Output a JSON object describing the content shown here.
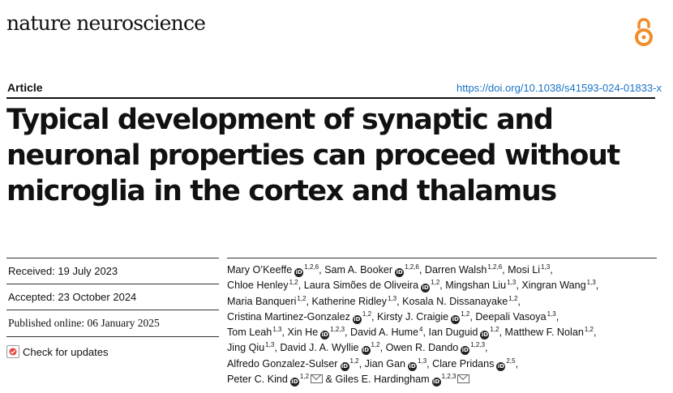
{
  "header": {
    "journal_name": "nature neuroscience",
    "open_access_icon": "open-access-icon",
    "article_type": "Article",
    "doi": "https://doi.org/10.1038/s41593-024-01833-x"
  },
  "title_lines": [
    "Typical development of synaptic and",
    "neuronal properties can proceed without",
    "microglia in the cortex and thalamus"
  ],
  "meta": {
    "received": "Received: 19 July 2023",
    "accepted": "Accepted: 23 October 2024",
    "published": "Published online: 06 January 2025",
    "check_updates": "Check for updates"
  },
  "authors": [
    {
      "name": "Mary O’Keeffe",
      "orcid": true,
      "sup": "1,2,6"
    },
    {
      "name": "Sam A. Booker",
      "orcid": true,
      "sup": "1,2,6"
    },
    {
      "name": "Darren Walsh",
      "orcid": false,
      "sup": "1,2,6"
    },
    {
      "name": "Mosi Li",
      "orcid": false,
      "sup": "1,3"
    },
    {
      "name": "Chloe Henley",
      "orcid": false,
      "sup": "1,2"
    },
    {
      "name": "Laura Simões de Oliveira",
      "orcid": true,
      "sup": "1,2"
    },
    {
      "name": "Mingshan Liu",
      "orcid": false,
      "sup": "1,3"
    },
    {
      "name": "Xingran Wang",
      "orcid": false,
      "sup": "1,3"
    },
    {
      "name": "Maria Banqueri",
      "orcid": false,
      "sup": "1,2"
    },
    {
      "name": "Katherine Ridley",
      "orcid": false,
      "sup": "1,3"
    },
    {
      "name": "Kosala N. Dissanayake",
      "orcid": false,
      "sup": "1,2"
    },
    {
      "name": "Cristina Martinez-Gonzalez",
      "orcid": true,
      "sup": "1,2"
    },
    {
      "name": "Kirsty J. Craigie",
      "orcid": true,
      "sup": "1,2"
    },
    {
      "name": "Deepali Vasoya",
      "orcid": false,
      "sup": "1,3"
    },
    {
      "name": "Tom Leah",
      "orcid": false,
      "sup": "1,3"
    },
    {
      "name": "Xin He",
      "orcid": true,
      "sup": "1,2,3"
    },
    {
      "name": "David A. Hume",
      "orcid": false,
      "sup": "4"
    },
    {
      "name": "Ian Duguid",
      "orcid": true,
      "sup": "1,2"
    },
    {
      "name": "Matthew F. Nolan",
      "orcid": false,
      "sup": "1,2"
    },
    {
      "name": "Jing Qiu",
      "orcid": false,
      "sup": "1,3"
    },
    {
      "name": "David J. A. Wyllie",
      "orcid": true,
      "sup": "1,2"
    },
    {
      "name": "Owen R. Dando",
      "orcid": true,
      "sup": "1,2,3"
    },
    {
      "name": "Alfredo Gonzalez-Sulser",
      "orcid": true,
      "sup": "1,2"
    },
    {
      "name": "Jian Gan",
      "orcid": true,
      "sup": "1,3"
    },
    {
      "name": "Clare Pridans",
      "orcid": true,
      "sup": "2,5"
    },
    {
      "name": "Peter C. Kind",
      "orcid": true,
      "sup": "1,2",
      "mail": true
    },
    {
      "name": "Giles E. Hardingham",
      "orcid": true,
      "sup": "1,2,3",
      "mail": true,
      "prefix": "& "
    }
  ],
  "author_lines": [
    [
      0,
      1,
      2,
      3
    ],
    [
      4,
      5,
      6,
      7
    ],
    [
      8,
      9,
      10
    ],
    [
      11,
      12,
      13
    ],
    [
      14,
      15,
      16,
      17,
      18
    ],
    [
      19,
      20,
      21
    ],
    [
      22,
      23,
      24
    ],
    [
      25,
      26
    ]
  ],
  "icons": {
    "orcid": "orcid-icon",
    "mail": "mail-icon",
    "crossmark": "crossmark-icon"
  },
  "colors": {
    "doi_link": "#1a73c8",
    "open_access_orange": "#f28c28"
  }
}
